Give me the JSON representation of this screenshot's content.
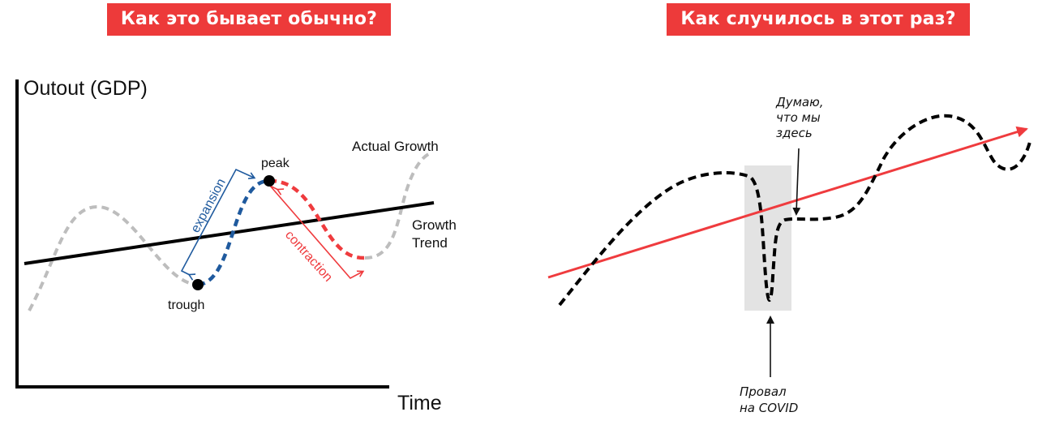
{
  "colors": {
    "accent_red": "#ef3b3e",
    "badge_red": "#ed3a3a",
    "blue": "#1f5a9e",
    "gray": "#bdbdbd",
    "black": "#000000",
    "shade": "#e3e3e3"
  },
  "left_panel": {
    "title": "Как это бывает обычно?",
    "y_axis_label": "Outout (GDP)",
    "x_axis_label": "Time",
    "labels": {
      "actual_growth": "Actual Growth",
      "growth_trend_line1": "Growth",
      "growth_trend_line2": "Trend",
      "peak": "peak",
      "trough": "trough",
      "expansion": "expansion",
      "contraction": "contraction"
    }
  },
  "right_panel": {
    "title": "Как случилось в этот раз?",
    "annotation_here": [
      "Думаю,",
      "что мы",
      "здесь"
    ],
    "annotation_covid": [
      "Провал",
      "на COVID"
    ]
  }
}
